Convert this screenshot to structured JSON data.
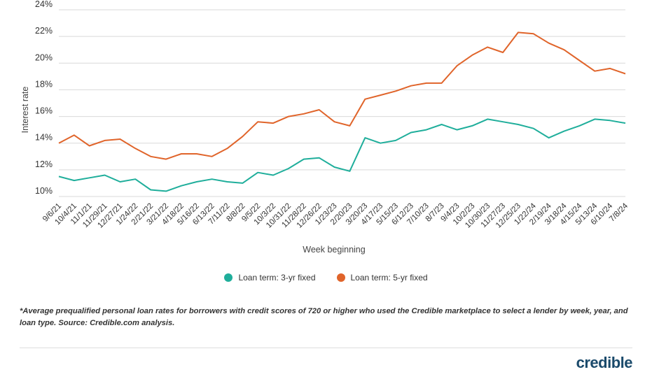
{
  "chart_data": {
    "type": "line",
    "title": "",
    "xlabel": "Week beginning",
    "ylabel": "Interest rate",
    "ylim": [
      10,
      24
    ],
    "yticks": [
      "10%",
      "12%",
      "14%",
      "16%",
      "18%",
      "20%",
      "22%",
      "24%"
    ],
    "grid": true,
    "legend_position": "bottom-center",
    "x": [
      "9/6/21",
      "10/4/21",
      "11/1/21",
      "11/29/21",
      "12/27/21",
      "1/24/22",
      "2/21/22",
      "3/21/22",
      "4/18/22",
      "5/16/22",
      "6/13/22",
      "7/11/22",
      "8/8/22",
      "9/5/22",
      "10/3/22",
      "10/31/22",
      "11/28/22",
      "12/26/22",
      "1/23/23",
      "2/20/23",
      "3/20/23",
      "4/17/23",
      "5/15/23",
      "6/12/23",
      "7/10/23",
      "8/7/23",
      "9/4/23",
      "10/2/23",
      "10/30/23",
      "11/27/23",
      "12/25/23",
      "1/22/24",
      "2/19/24",
      "3/18/24",
      "4/15/24",
      "5/13/24",
      "6/10/24",
      "7/8/24"
    ],
    "series": [
      {
        "name": "Loan term: 3-yr fixed",
        "color": "#1fae9b",
        "values": [
          11.5,
          11.2,
          11.4,
          11.6,
          11.1,
          11.3,
          10.5,
          10.4,
          10.8,
          11.1,
          11.3,
          11.1,
          11.0,
          11.8,
          11.6,
          12.1,
          12.8,
          12.9,
          12.2,
          11.9,
          14.4,
          14.0,
          14.2,
          14.8,
          15.0,
          15.4,
          15.0,
          15.3,
          15.8,
          15.6,
          15.4,
          15.1,
          14.4,
          14.9,
          15.3,
          15.8,
          15.7,
          15.5
        ]
      },
      {
        "name": "Loan term: 5-yr fixed",
        "color": "#e0642a",
        "values": [
          14.0,
          14.6,
          13.8,
          14.2,
          14.3,
          13.6,
          13.0,
          12.8,
          13.2,
          13.2,
          13.0,
          13.6,
          14.5,
          15.6,
          15.5,
          16.0,
          16.2,
          16.5,
          15.6,
          15.3,
          17.3,
          17.6,
          17.9,
          18.3,
          18.5,
          18.5,
          19.8,
          20.6,
          21.2,
          20.8,
          22.3,
          22.2,
          21.5,
          21.0,
          20.2,
          19.4,
          19.6,
          19.2
        ]
      }
    ]
  },
  "footnote": "*Average prequalified personal loan rates for borrowers with credit scores of 720 or higher who used the Credible marketplace to select a lender by week, year, and loan type. Source: Credible.com analysis.",
  "logo": "credible"
}
